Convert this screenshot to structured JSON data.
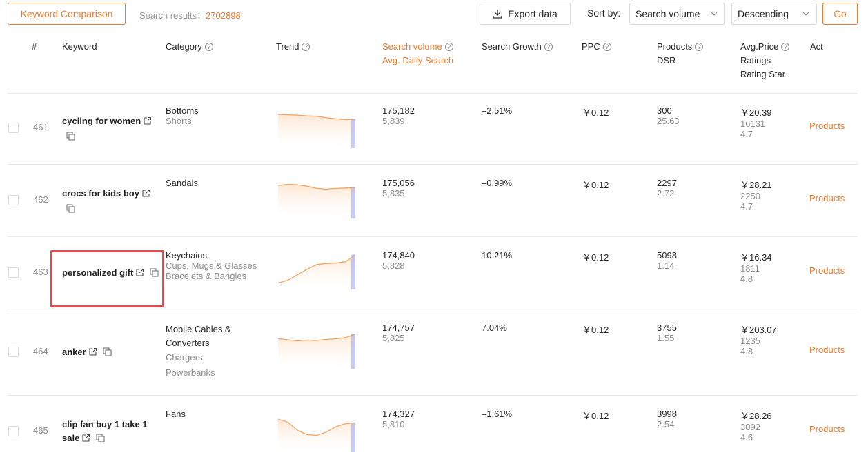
{
  "toolbar": {
    "compare_label": "Keyword Comparison",
    "results_label": "Search results：",
    "results_count": "2702898",
    "export_label": "Export data",
    "sort_label": "Sort by:",
    "sort_value": "Search volume",
    "order_value": "Descending",
    "go_label": "Go"
  },
  "columns": {
    "rank": "#",
    "keyword": "Keyword",
    "category": "Category",
    "trend": "Trend",
    "search_volume": "Search volume",
    "avg_daily": "Avg. Daily Search",
    "growth": "Search Growth",
    "ppc": "PPC",
    "products": "Products",
    "dsr": "DSR",
    "avg_price": "Avg.Price",
    "ratings": "Ratings",
    "rating_star": "Rating Star",
    "act": "Act",
    "help_glyph": "?"
  },
  "rows": [
    {
      "rank": "461",
      "keyword": "cycling for women",
      "cat1": "Bottoms",
      "cat2": "Shorts",
      "cat3": "",
      "volume": "175,182",
      "daily": "5,839",
      "growth": "–2.51%",
      "ppc": "￥0.12",
      "products": "300",
      "dsr": "25.63",
      "price": "￥20.39",
      "ratings": "16131",
      "star": "4.7",
      "act": "Products",
      "trend": [
        0.92,
        0.91,
        0.9,
        0.88,
        0.87,
        0.83,
        0.8,
        0.78,
        0.79
      ]
    },
    {
      "rank": "462",
      "keyword": "crocs for kids boy",
      "cat1": "Sandals",
      "cat2": "",
      "cat3": "",
      "volume": "175,056",
      "daily": "5,835",
      "growth": "–0.99%",
      "ppc": "￥0.12",
      "products": "2297",
      "dsr": "2.72",
      "price": "￥28.21",
      "ratings": "2250",
      "star": "4.7",
      "act": "Products",
      "trend": [
        0.9,
        0.93,
        0.92,
        0.88,
        0.82,
        0.8,
        0.82,
        0.83,
        0.84
      ]
    },
    {
      "rank": "463",
      "keyword": "personalized gift",
      "cat1": "Keychains",
      "cat2": "Cups, Mugs & Glasses",
      "cat3": "Bracelets & Bangles",
      "volume": "174,840",
      "daily": "5,828",
      "growth": "10.21%",
      "ppc": "￥0.12",
      "products": "5098",
      "dsr": "1.14",
      "price": "￥16.34",
      "ratings": "1811",
      "star": "4.8",
      "act": "Products",
      "trend": [
        0.18,
        0.25,
        0.4,
        0.55,
        0.68,
        0.71,
        0.72,
        0.76,
        0.95
      ]
    },
    {
      "rank": "464",
      "keyword": "anker",
      "cat1": "Mobile Cables &",
      "cat1b": "Converters",
      "cat2": "Chargers",
      "cat3": "Powerbanks",
      "volume": "174,757",
      "daily": "5,825",
      "growth": "7.04%",
      "ppc": "￥0.12",
      "products": "3755",
      "dsr": "1.55",
      "price": "￥203.07",
      "ratings": "1235",
      "star": "4.8",
      "act": "Products",
      "trend": [
        0.82,
        0.79,
        0.76,
        0.78,
        0.77,
        0.8,
        0.82,
        0.85,
        0.95
      ]
    },
    {
      "rank": "465",
      "keyword": "clip fan buy 1 take 1",
      "keyword2": "sale",
      "cat1": "Fans",
      "cat2": "",
      "cat3": "",
      "volume": "174,327",
      "daily": "5,810",
      "growth": "–1.61%",
      "ppc": "￥0.12",
      "products": "3998",
      "dsr": "2.54",
      "price": "￥28.26",
      "ratings": "3092",
      "star": "4.6",
      "act": "Products",
      "trend": [
        0.9,
        0.82,
        0.6,
        0.48,
        0.46,
        0.55,
        0.7,
        0.78,
        0.8
      ]
    }
  ],
  "colors": {
    "accent": "#f07a2d",
    "trend_line": "#f5a25d",
    "trend_fill": "#fde6d2",
    "trend_end": "#9aa2f2",
    "highlight": "#e5484d"
  }
}
